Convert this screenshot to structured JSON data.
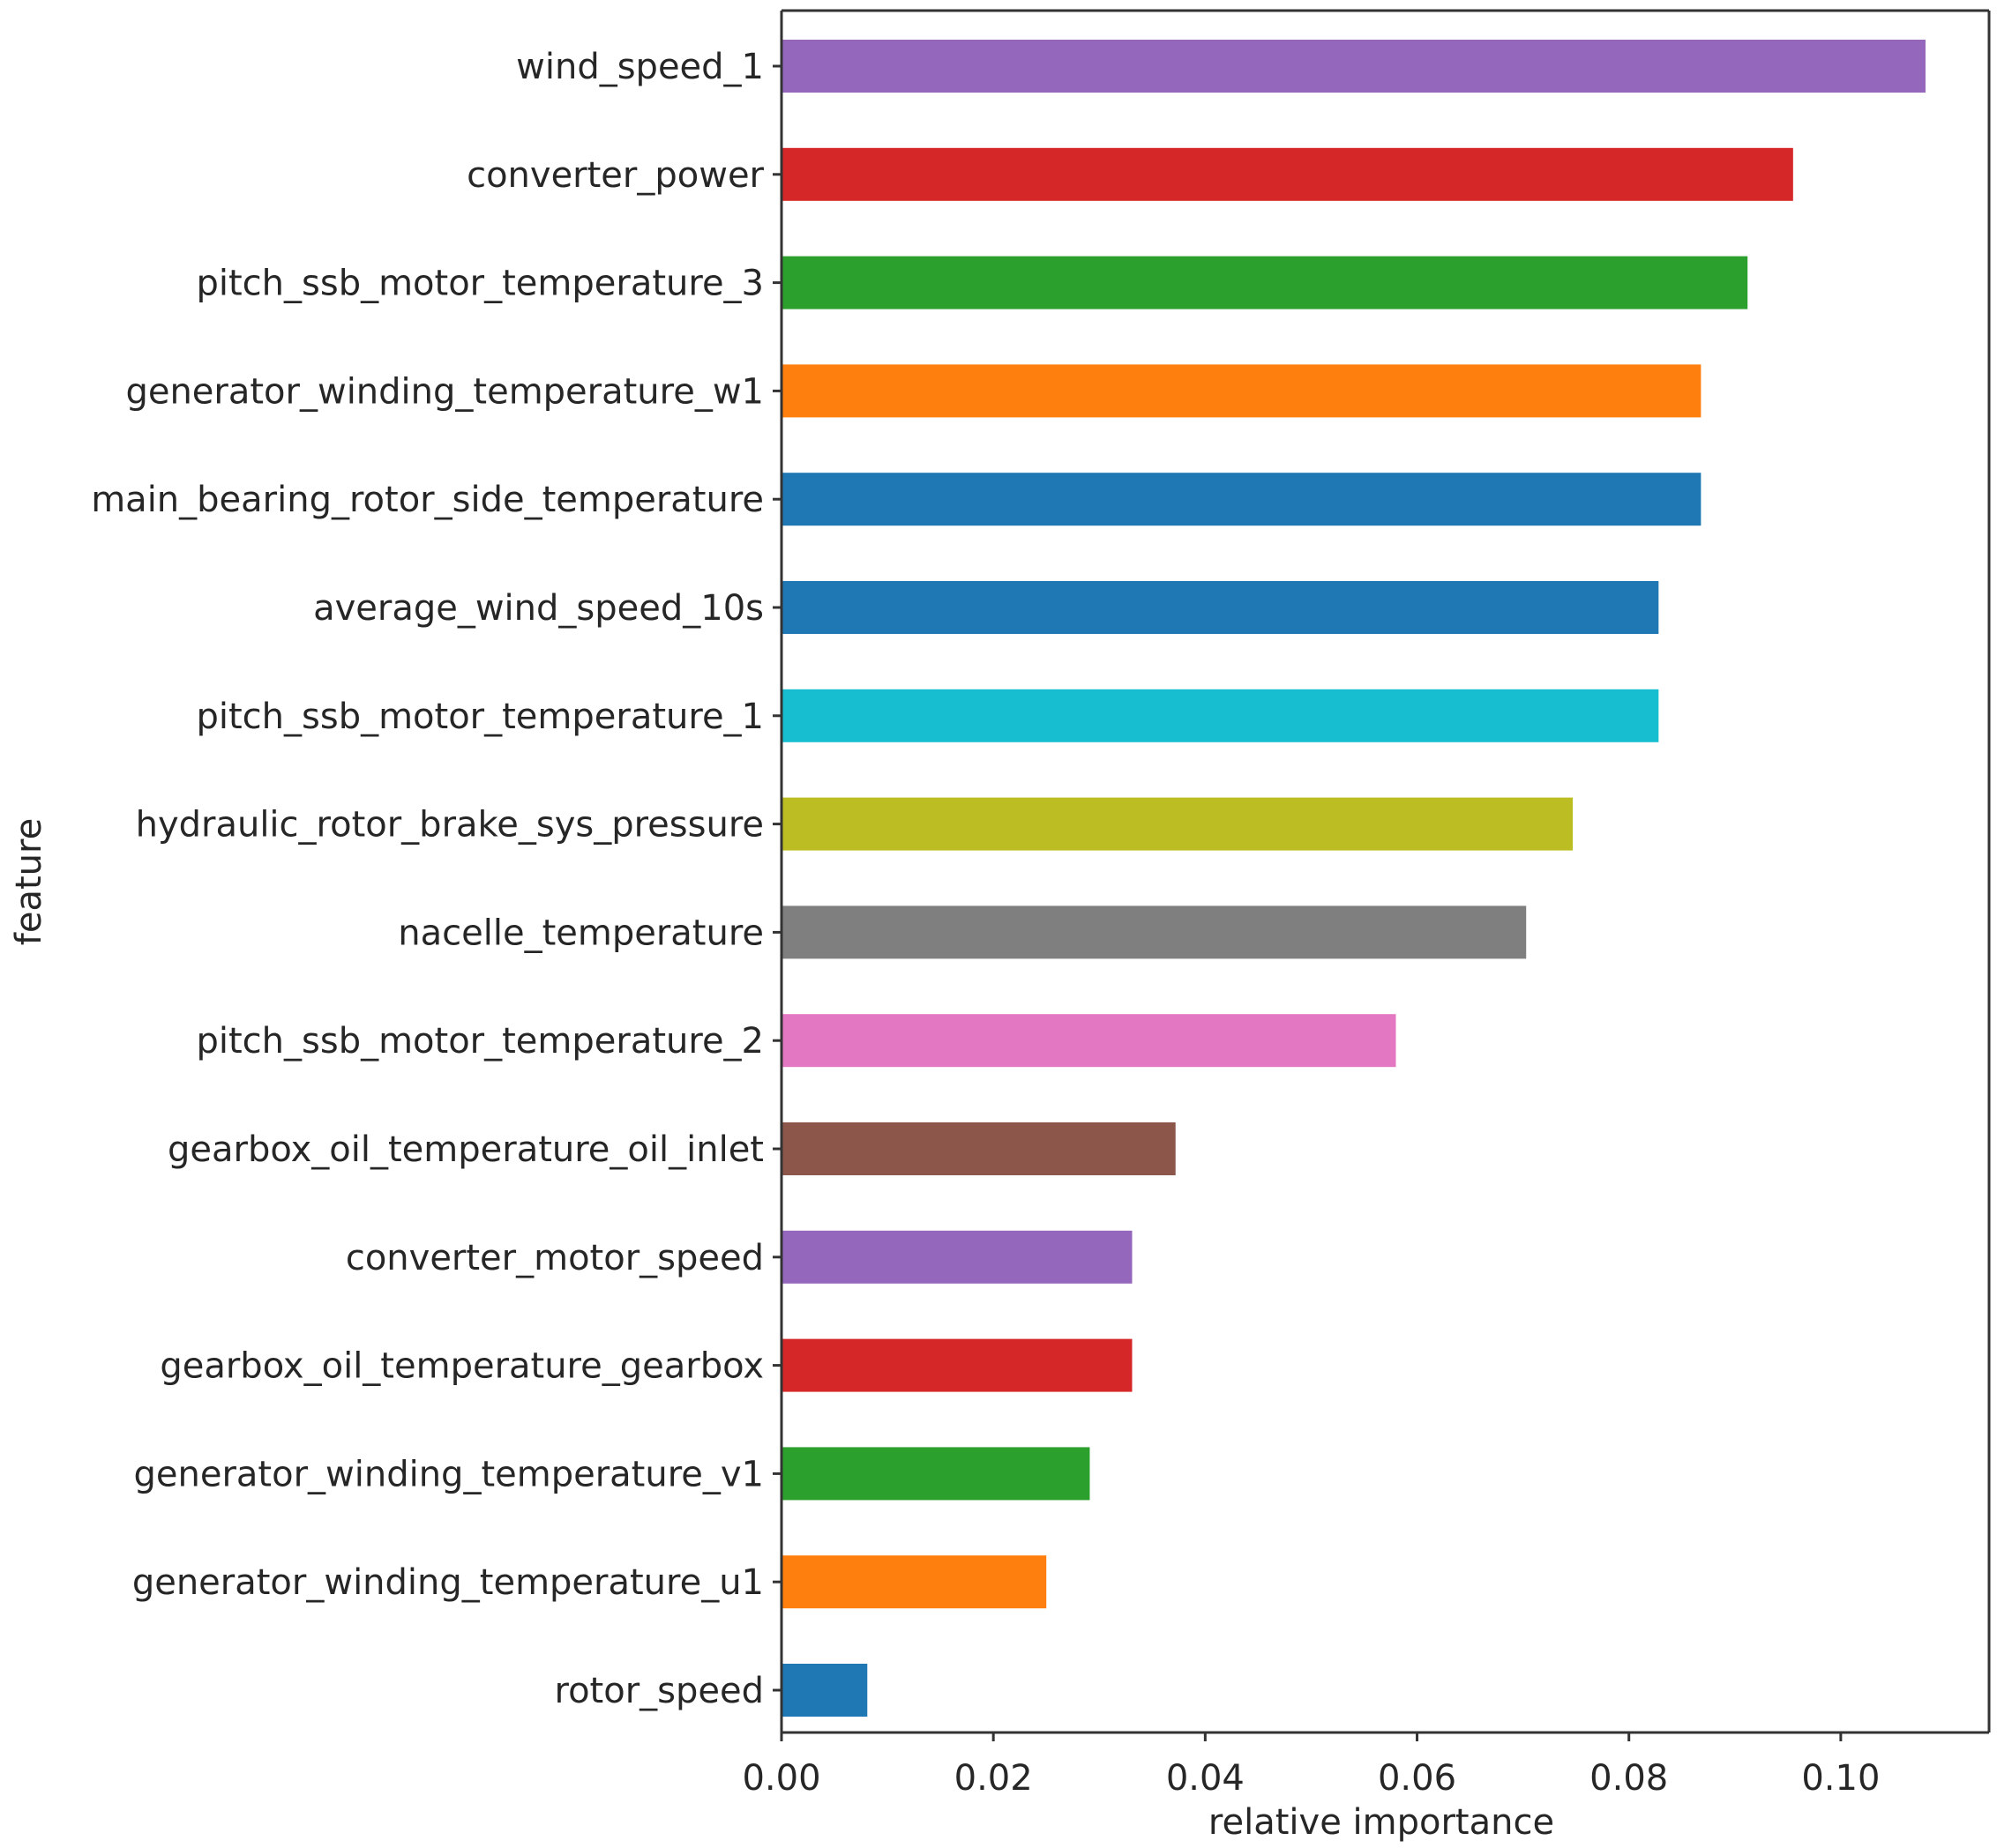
{
  "chart_data": {
    "type": "bar",
    "orientation": "horizontal",
    "xlabel": "relative importance",
    "ylabel": "feature",
    "xlim": [
      0,
      0.114
    ],
    "xticks": [
      "0.00",
      "0.02",
      "0.04",
      "0.06",
      "0.08",
      "0.10"
    ],
    "grid": false,
    "categories": [
      "wind_speed_1",
      "converter_power",
      "pitch_ssb_motor_temperature_3",
      "generator_winding_temperature_w1",
      "main_bearing_rotor_side_temperature",
      "average_wind_speed_10s",
      "pitch_ssb_motor_temperature_1",
      "hydraulic_rotor_brake_sys_pressure",
      "nacelle_temperature",
      "pitch_ssb_motor_temperature_2",
      "gearbox_oil_temperature_oil_inlet",
      "converter_motor_speed",
      "gearbox_oil_temperature_gearbox",
      "generator_winding_temperature_v1",
      "generator_winding_temperature_u1",
      "rotor_speed"
    ],
    "values": [
      0.108,
      0.0955,
      0.0912,
      0.0868,
      0.0868,
      0.0828,
      0.0828,
      0.0747,
      0.0703,
      0.058,
      0.0372,
      0.0331,
      0.0331,
      0.0291,
      0.025,
      0.0081
    ],
    "colors": [
      "#9467bd",
      "#d62728",
      "#2ca02c",
      "#ff7f0e",
      "#1f77b4",
      "#1f77b4",
      "#17becf",
      "#bcbd22",
      "#7f7f7f",
      "#e377c2",
      "#8c564b",
      "#9467bd",
      "#d62728",
      "#2ca02c",
      "#ff7f0e",
      "#1f77b4"
    ]
  }
}
